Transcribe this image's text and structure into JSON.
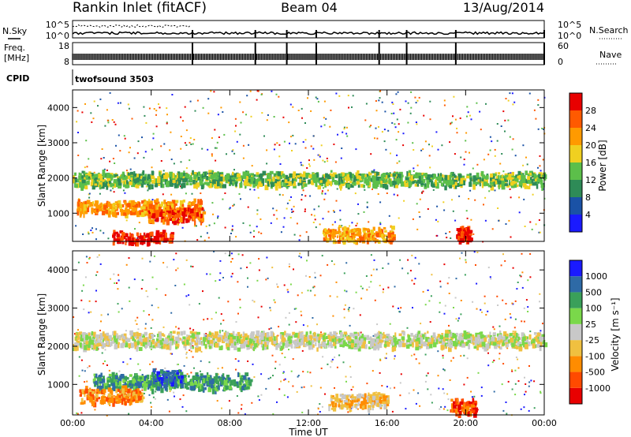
{
  "header": {
    "station": "Rankin Inlet (fitACF)",
    "beam": "Beam 04",
    "date": "13/Aug/2014"
  },
  "panels": {
    "noise": {
      "left_label": "N.Sky",
      "right_label": "N.Search",
      "left_ticks": [
        "10^5",
        "10^0"
      ],
      "right_ticks": [
        "10^5",
        "10^0"
      ]
    },
    "freq": {
      "left_label_1": "Freq.",
      "left_label_2": "[MHz]",
      "right_label": "Nave",
      "left_ticks": [
        "18",
        "8"
      ],
      "right_ticks": [
        "60",
        "0"
      ]
    },
    "cpid": {
      "label": "CPID",
      "value": "twofsound 3503"
    }
  },
  "colors": {
    "power": [
      "#1a1aff",
      "#1a52a6",
      "#2e8b57",
      "#5cbf4a",
      "#f0d020",
      "#ff9a00",
      "#ff5a00",
      "#e80000"
    ],
    "velocity": [
      "#e80000",
      "#ff4a00",
      "#ff8c00",
      "#f0c040",
      "#c8c8c8",
      "#7ad84a",
      "#3aa05a",
      "#2e6aa6",
      "#1a1aff"
    ]
  },
  "chart_data": [
    {
      "type": "heatmap",
      "title": "",
      "xlabel": "",
      "ylabel": "Slant Range [km]",
      "x_ticks": [
        "00:00",
        "04:00",
        "08:00",
        "12:00",
        "16:00",
        "20:00",
        "00:00"
      ],
      "y_ticks": [
        1000,
        2000,
        3000,
        4000
      ],
      "ylim": [
        200,
        4500
      ],
      "colorbar_label": "Power [dB]",
      "colorbar_ticks": [
        4,
        8,
        12,
        16,
        20,
        24,
        28
      ],
      "features": [
        {
          "start_hour": 0.0,
          "end_hour": 24.0,
          "range_km": 2000,
          "value_db": 13
        },
        {
          "start_hour": 0.2,
          "end_hour": 6.5,
          "range_km": 1200,
          "value_db": 20
        },
        {
          "start_hour": 3.8,
          "end_hour": 6.6,
          "range_km": 1000,
          "value_db": 26
        },
        {
          "start_hour": 2.0,
          "end_hour": 5.0,
          "range_km": 300,
          "value_db": 28
        },
        {
          "start_hour": 12.7,
          "end_hour": 16.3,
          "range_km": 420,
          "value_db": 22
        },
        {
          "start_hour": 19.5,
          "end_hour": 20.2,
          "range_km": 450,
          "value_db": 28
        }
      ]
    },
    {
      "type": "heatmap",
      "title": "",
      "xlabel": "Time UT",
      "ylabel": "Slant Range [km]",
      "x_ticks": [
        "00:00",
        "04:00",
        "08:00",
        "12:00",
        "16:00",
        "20:00",
        "00:00"
      ],
      "y_ticks": [
        1000,
        2000,
        3000,
        4000
      ],
      "ylim": [
        200,
        4500
      ],
      "colorbar_label": "Velocity [m s⁻¹]",
      "colorbar_ticks": [
        -1000,
        -500,
        -100,
        -25,
        25,
        100,
        500,
        1000
      ],
      "features": [
        {
          "start_hour": 0.0,
          "end_hour": 24.0,
          "range_km": 2200,
          "value_ms": 0
        },
        {
          "start_hour": 1.0,
          "end_hour": 9.0,
          "range_km": 1100,
          "value_ms": 200
        },
        {
          "start_hour": 4.0,
          "end_hour": 5.5,
          "range_km": 1200,
          "value_ms": 700
        },
        {
          "start_hour": 0.3,
          "end_hour": 3.5,
          "range_km": 750,
          "value_ms": -300
        },
        {
          "start_hour": 19.2,
          "end_hour": 20.5,
          "range_km": 450,
          "value_ms": -700
        },
        {
          "start_hour": 13.0,
          "end_hour": 16.0,
          "range_km": 600,
          "value_ms": -60
        }
      ]
    }
  ]
}
